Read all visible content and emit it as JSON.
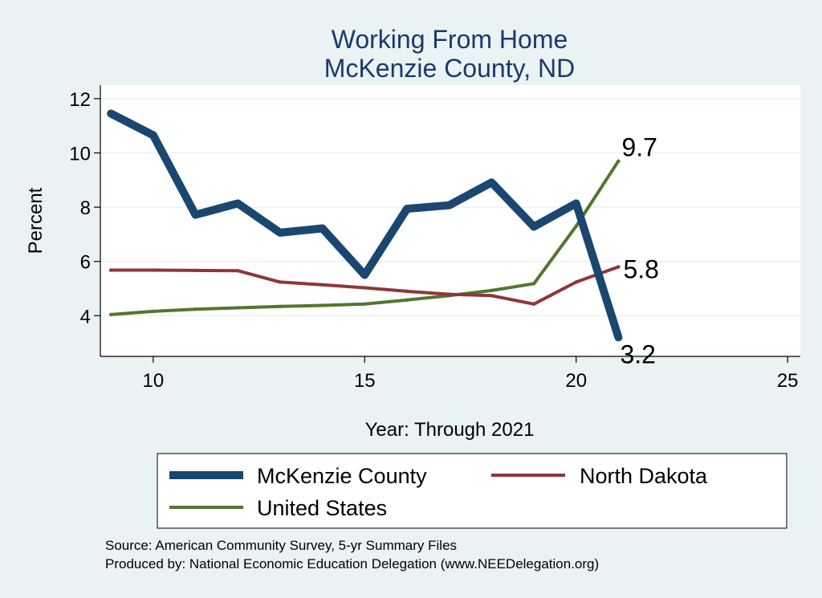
{
  "chart_data": {
    "type": "line",
    "title": "Working From Home",
    "subtitle": "McKenzie County, ND",
    "xlabel": "Year: Through 2021",
    "ylabel": "Percent",
    "xlim": [
      8.75,
      25.3
    ],
    "ylim": [
      2.5,
      12.5
    ],
    "x_ticks": [
      10,
      15,
      20,
      25
    ],
    "y_ticks": [
      4,
      6,
      8,
      10,
      12
    ],
    "grid": true,
    "legend_position": "bottom",
    "series": [
      {
        "name": "McKenzie County",
        "color": "#1a476f",
        "x": [
          9,
          10,
          11,
          12,
          13,
          14,
          15,
          16,
          17,
          18,
          19,
          20,
          21
        ],
        "values": [
          11.45,
          10.65,
          7.72,
          8.14,
          7.06,
          7.22,
          5.5,
          7.94,
          8.07,
          8.91,
          7.28,
          8.14,
          3.2
        ],
        "end_label": "3.2"
      },
      {
        "name": "North Dakota",
        "color": "#90353b",
        "x": [
          9,
          10,
          11,
          12,
          13,
          14,
          15,
          16,
          17,
          18,
          19,
          20,
          21
        ],
        "values": [
          5.68,
          5.68,
          5.67,
          5.66,
          5.24,
          5.14,
          5.03,
          4.9,
          4.79,
          4.74,
          4.43,
          5.24,
          5.8
        ],
        "end_label": "5.8"
      },
      {
        "name": "United States",
        "color": "#55752f",
        "x": [
          9,
          10,
          11,
          12,
          13,
          14,
          15,
          16,
          17,
          18,
          19,
          20,
          21
        ],
        "values": [
          4.04,
          4.16,
          4.24,
          4.29,
          4.34,
          4.38,
          4.43,
          4.58,
          4.74,
          4.93,
          5.18,
          7.3,
          9.7
        ],
        "end_label": "9.7"
      }
    ]
  },
  "notes": {
    "source": "Source: American Community Survey, 5-yr Summary Files",
    "produced_by": "Produced by: National Economic Education Delegation (www.NEEDelegation.org)"
  },
  "colors": {
    "background": "#eaf2f3",
    "plot_background": "#ffffff",
    "grid": "#eaf2f3",
    "title": "#1a3a6b"
  }
}
